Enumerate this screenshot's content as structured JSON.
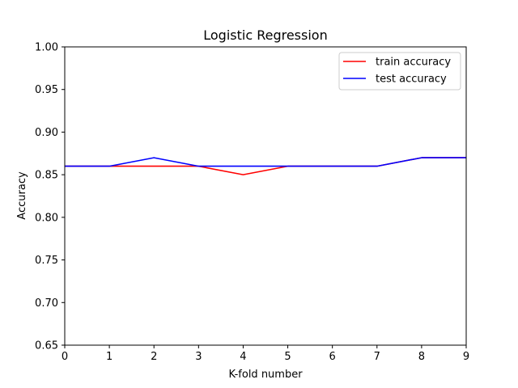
{
  "chart_data": {
    "type": "line",
    "title": "Logistic Regression",
    "xlabel": "K-fold number",
    "ylabel": "Accuracy",
    "x": [
      0,
      1,
      2,
      3,
      4,
      5,
      6,
      7,
      8,
      9
    ],
    "xlim": [
      0,
      9
    ],
    "ylim": [
      0.65,
      1.0
    ],
    "x_ticks": [
      "0",
      "1",
      "2",
      "3",
      "4",
      "5",
      "6",
      "7",
      "8",
      "9"
    ],
    "y_ticks": [
      "0.65",
      "0.70",
      "0.75",
      "0.80",
      "0.85",
      "0.90",
      "0.95",
      "1.00"
    ],
    "y_tick_values": [
      0.65,
      0.7,
      0.75,
      0.8,
      0.85,
      0.9,
      0.95,
      1.0
    ],
    "grid": false,
    "legend_position": "top-right",
    "series": [
      {
        "name": "train accuracy",
        "color": "#ff0000",
        "values": [
          0.86,
          0.86,
          0.86,
          0.86,
          0.85,
          0.86,
          0.86,
          0.86,
          0.87,
          0.87
        ]
      },
      {
        "name": "test accuracy",
        "color": "#0000ff",
        "values": [
          0.86,
          0.86,
          0.87,
          0.86,
          0.86,
          0.86,
          0.86,
          0.86,
          0.87,
          0.87
        ]
      }
    ]
  }
}
